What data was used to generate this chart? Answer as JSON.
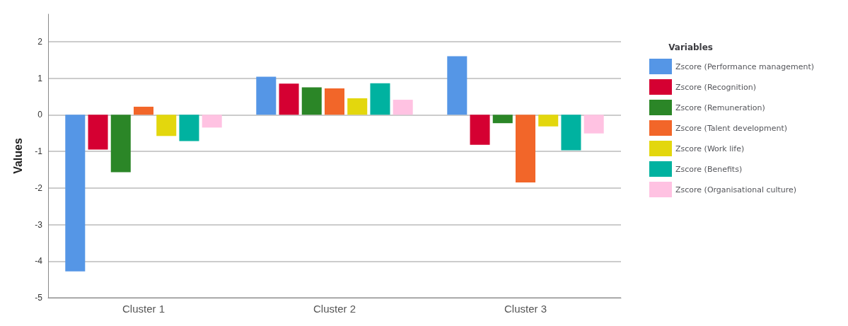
{
  "chart_data": {
    "type": "bar",
    "ylabel": "Values",
    "legend_title": "Variables",
    "categories": [
      "Cluster 1",
      "Cluster 2",
      "Cluster 3"
    ],
    "series": [
      {
        "name": "Zscore (Performance management)",
        "color": "#5596e6",
        "values": [
          -4.28,
          1.04,
          1.6
        ]
      },
      {
        "name": "Zscore (Recognition)",
        "color": "#d50032",
        "values": [
          -0.95,
          0.85,
          -0.82
        ]
      },
      {
        "name": "Zscore (Remuneration)",
        "color": "#2b8627",
        "values": [
          -1.57,
          0.75,
          -0.23
        ]
      },
      {
        "name": "Zscore (Talent development)",
        "color": "#f26629",
        "values": [
          0.22,
          0.72,
          -1.85
        ]
      },
      {
        "name": "Zscore (Work life)",
        "color": "#e3d70d",
        "values": [
          -0.58,
          0.45,
          -0.32
        ]
      },
      {
        "name": "Zscore (Benefits)",
        "color": "#00b2a0",
        "values": [
          -0.72,
          0.86,
          -0.97
        ]
      },
      {
        "name": "Zscore (Organisational culture)",
        "color": "#ffc2e2",
        "values": [
          -0.35,
          0.41,
          -0.51
        ]
      }
    ],
    "ylim": [
      -5,
      2.75
    ],
    "yticks": [
      -5,
      -4,
      -3,
      -2,
      -1,
      0,
      1,
      2
    ],
    "grid": "y",
    "legend": "right"
  }
}
